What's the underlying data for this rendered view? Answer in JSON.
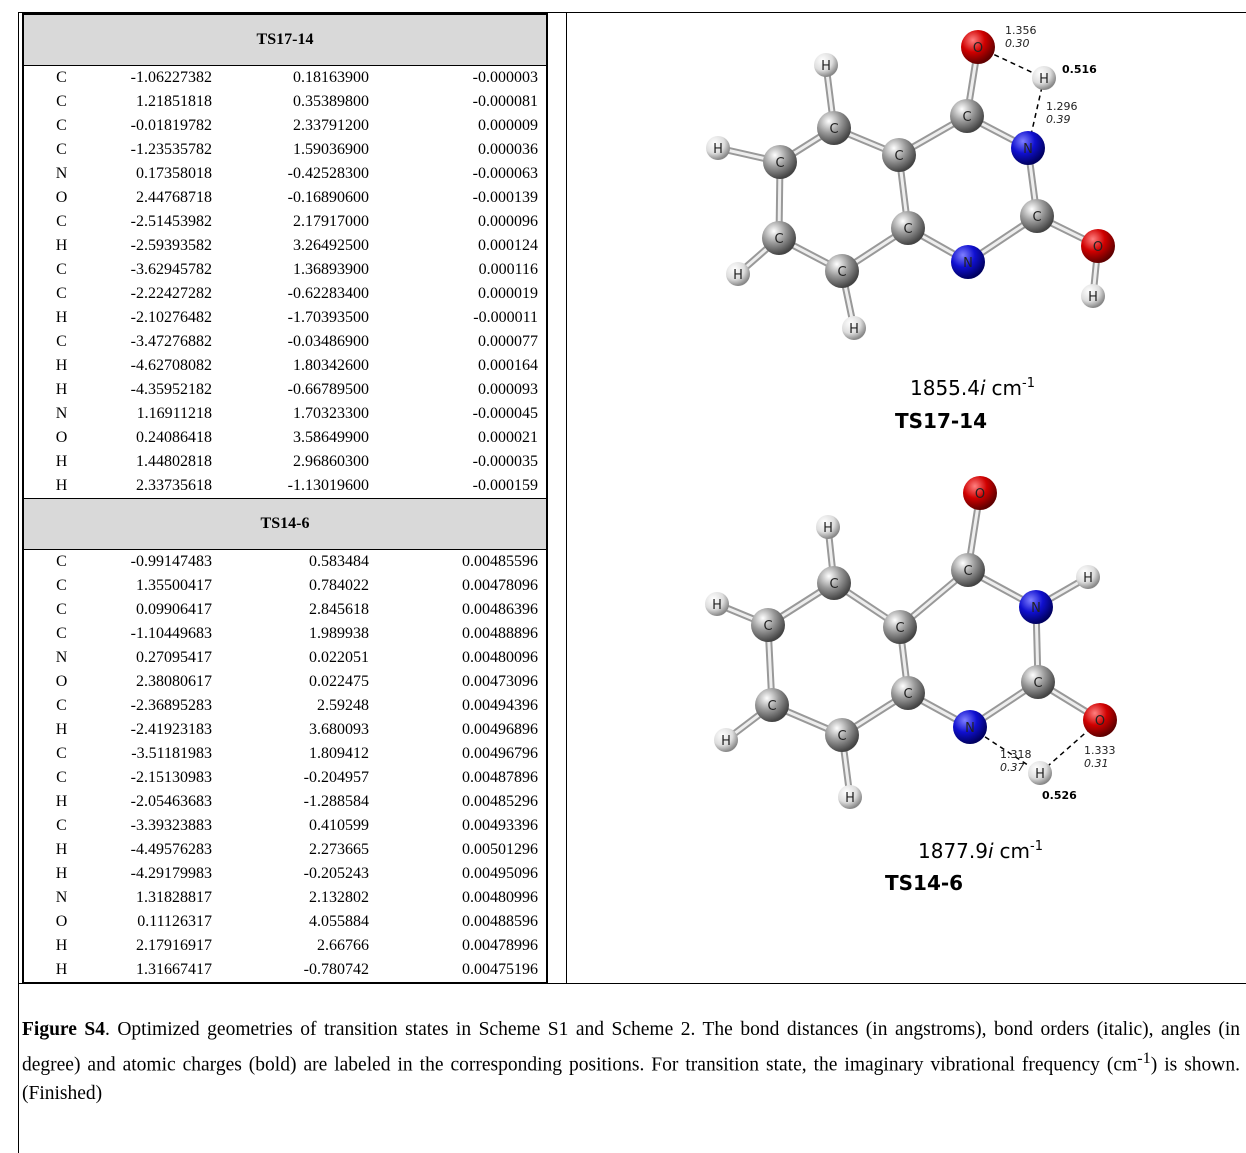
{
  "tables": [
    {
      "title": "TS17-14",
      "rows": [
        [
          "C",
          "-1.06227382",
          "0.18163900",
          "-0.000003"
        ],
        [
          "C",
          "1.21851818",
          "0.35389800",
          "-0.000081"
        ],
        [
          "C",
          "-0.01819782",
          "2.33791200",
          "0.000009"
        ],
        [
          "C",
          "-1.23535782",
          "1.59036900",
          "0.000036"
        ],
        [
          "N",
          "0.17358018",
          "-0.42528300",
          "-0.000063"
        ],
        [
          "O",
          "2.44768718",
          "-0.16890600",
          "-0.000139"
        ],
        [
          "C",
          "-2.51453982",
          "2.17917000",
          "0.000096"
        ],
        [
          "H",
          "-2.59393582",
          "3.26492500",
          "0.000124"
        ],
        [
          "C",
          "-3.62945782",
          "1.36893900",
          "0.000116"
        ],
        [
          "C",
          "-2.22427282",
          "-0.62283400",
          "0.000019"
        ],
        [
          "H",
          "-2.10276482",
          "-1.70393500",
          "-0.000011"
        ],
        [
          "C",
          "-3.47276882",
          "-0.03486900",
          "0.000077"
        ],
        [
          "H",
          "-4.62708082",
          "1.80342600",
          "0.000164"
        ],
        [
          "H",
          "-4.35952182",
          "-0.66789500",
          "0.000093"
        ],
        [
          "N",
          "1.16911218",
          "1.70323300",
          "-0.000045"
        ],
        [
          "O",
          "0.24086418",
          "3.58649900",
          "0.000021"
        ],
        [
          "H",
          "1.44802818",
          "2.96860300",
          "-0.000035"
        ],
        [
          "H",
          "2.33735618",
          "-1.13019600",
          "-0.000159"
        ]
      ]
    },
    {
      "title": "TS14-6",
      "rows": [
        [
          "C",
          "-0.99147483",
          "0.583484",
          "0.00485596"
        ],
        [
          "C",
          "1.35500417",
          "0.784022",
          "0.00478096"
        ],
        [
          "C",
          "0.09906417",
          "2.845618",
          "0.00486396"
        ],
        [
          "C",
          "-1.10449683",
          "1.989938",
          "0.00488896"
        ],
        [
          "N",
          "0.27095417",
          "0.022051",
          "0.00480096"
        ],
        [
          "O",
          "2.38080617",
          "0.022475",
          "0.00473096"
        ],
        [
          "C",
          "-2.36895283",
          "2.59248",
          "0.00494396"
        ],
        [
          "H",
          "-2.41923183",
          "3.680093",
          "0.00496896"
        ],
        [
          "C",
          "-3.51181983",
          "1.809412",
          "0.00496796"
        ],
        [
          "C",
          "-2.15130983",
          "-0.204957",
          "0.00487896"
        ],
        [
          "H",
          "-2.05463683",
          "-1.288584",
          "0.00485296"
        ],
        [
          "C",
          "-3.39323883",
          "0.410599",
          "0.00493396"
        ],
        [
          "H",
          "-4.49576283",
          "2.273665",
          "0.00501296"
        ],
        [
          "H",
          "-4.29179983",
          "-0.205243",
          "0.00495096"
        ],
        [
          "N",
          "1.31828817",
          "2.132802",
          "0.00480996"
        ],
        [
          "O",
          "0.11126317",
          "4.055884",
          "0.00488596"
        ],
        [
          "H",
          "2.17916917",
          "2.66766",
          "0.00478996"
        ],
        [
          "H",
          "1.31667417",
          "-0.780742",
          "0.00475196"
        ]
      ]
    }
  ],
  "molecules": [
    {
      "atoms": [
        "O",
        "H",
        "C",
        "N",
        "C",
        "O",
        "H",
        "N",
        "C",
        "C",
        "C",
        "H",
        "C",
        "H",
        "C",
        "H",
        "C",
        "H"
      ],
      "labels": [
        "1.356",
        "0.30",
        "0.516",
        "1.296",
        "0.39"
      ],
      "frequency": {
        "value": "1855.4",
        "imaginary": "i",
        "unit": "cm",
        "exponent": "-1"
      },
      "name": "TS17-14"
    },
    {
      "atoms": [
        "O",
        "H",
        "C",
        "C",
        "H",
        "N",
        "H",
        "C",
        "C",
        "C",
        "C",
        "O",
        "C",
        "N",
        "H",
        "C",
        "H",
        "H"
      ],
      "labels": [
        "1.318",
        "0.37",
        "1.333",
        "0.31",
        "0.526"
      ],
      "frequency": {
        "value": "1877.9",
        "imaginary": "i",
        "unit": "cm",
        "exponent": "-1"
      },
      "name": "TS14-6"
    }
  ],
  "caption": {
    "label": "Figure S4",
    "text": ". Optimized geometries of transition states in Scheme S1 and Scheme 2. The bond distances (in angstroms), bond orders (italic), angles (in degree) and atomic charges (bold) are labeled in the corresponding positions. For transition state, the imaginary vibrational frequency (cm",
    "superscript": "-1",
    "text_end": ") is shown. (Finished)"
  }
}
